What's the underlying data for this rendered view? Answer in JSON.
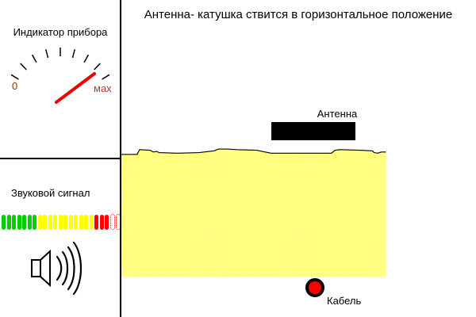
{
  "title": "Антенна- катушка ствится в горизонтальное положение",
  "indicator": {
    "label": "Индикатор прибора",
    "gauge": {
      "min_label": "0",
      "max_label": "мах",
      "tick_count": 9,
      "needle_color": "#ee0000",
      "min_label_color": "#883300",
      "max_label_color": "#c03333"
    }
  },
  "sound": {
    "label": "Звуковой сигнал",
    "led_bar": {
      "segments": [
        "green",
        "green",
        "green",
        "green",
        "green",
        "green",
        "green",
        "yellow",
        "yellow",
        "yellow",
        "yellow",
        "yellow",
        "yellow",
        "yellow",
        "yellow",
        "yellow",
        "yellow",
        "yellow",
        "red",
        "red",
        "red",
        "off",
        "off"
      ],
      "colors": {
        "green": "#00d000",
        "yellow": "#ffff00",
        "red": "#ff0000",
        "off_outline": "#ff0000"
      }
    },
    "speaker_icon": "speaker-with-sound-waves"
  },
  "scene": {
    "antenna": {
      "label": "Антенна",
      "color": "#000000"
    },
    "cable": {
      "label": "Кабель",
      "fill": "#ff0000",
      "outline": "#000000"
    },
    "ground": {
      "color": "#ffff00",
      "dither": "#ffffff"
    }
  }
}
